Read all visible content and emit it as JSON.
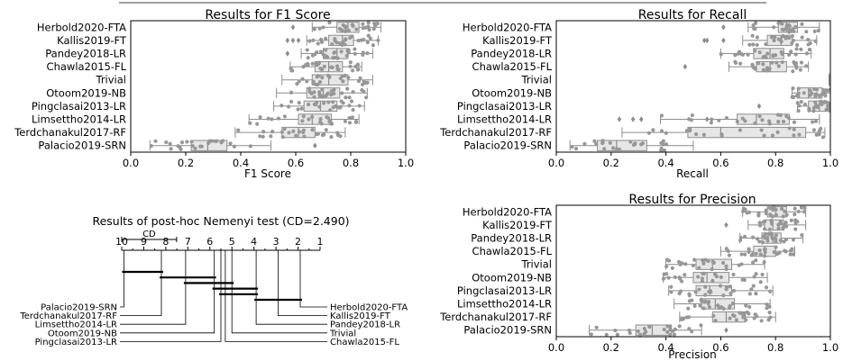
{
  "chart_data": [
    {
      "type": "boxplot",
      "title": "Results for F1 Score",
      "xlabel": "F1 Score",
      "xlim": [
        0.0,
        1.0
      ],
      "xticks": [
        "0.0",
        "0.2",
        "0.4",
        "0.6",
        "0.8",
        "1.0"
      ],
      "categories": [
        "Herbold2020-FTA",
        "Kallis2019-FT",
        "Pandey2018-LR",
        "Chawla2015-FL",
        "Trivial",
        "Otoom2019-NB",
        "Pingclasai2013-LR",
        "Limsettho2014-LR",
        "Terdchanakul2017-RF",
        "Palacio2019-SRN"
      ],
      "boxes": [
        {
          "q1": 0.75,
          "median": 0.79,
          "q3": 0.83,
          "wlo": 0.66,
          "whi": 0.91,
          "outliers": [
            0.59
          ]
        },
        {
          "q1": 0.72,
          "median": 0.77,
          "q3": 0.81,
          "wlo": 0.64,
          "whi": 0.9,
          "outliers": [
            0.57,
            0.59,
            0.61
          ]
        },
        {
          "q1": 0.7,
          "median": 0.75,
          "q3": 0.79,
          "wlo": 0.62,
          "whi": 0.88,
          "outliers": [
            0.57
          ]
        },
        {
          "q1": 0.67,
          "median": 0.72,
          "q3": 0.77,
          "wlo": 0.58,
          "whi": 0.84,
          "outliers": []
        },
        {
          "q1": 0.66,
          "median": 0.72,
          "q3": 0.79,
          "wlo": 0.55,
          "whi": 0.88,
          "outliers": []
        },
        {
          "q1": 0.64,
          "median": 0.7,
          "q3": 0.76,
          "wlo": 0.53,
          "whi": 0.86,
          "outliers": []
        },
        {
          "q1": 0.63,
          "median": 0.69,
          "q3": 0.75,
          "wlo": 0.52,
          "whi": 0.85,
          "outliers": []
        },
        {
          "q1": 0.61,
          "median": 0.66,
          "q3": 0.73,
          "wlo": 0.43,
          "whi": 0.83,
          "outliers": []
        },
        {
          "q1": 0.55,
          "median": 0.61,
          "q3": 0.67,
          "wlo": 0.38,
          "whi": 0.78,
          "outliers": []
        },
        {
          "q1": 0.22,
          "median": 0.28,
          "q3": 0.35,
          "wlo": 0.07,
          "whi": 0.51,
          "outliers": [
            0.67
          ]
        }
      ]
    },
    {
      "type": "boxplot",
      "title": "Results for Recall",
      "xlabel": "Recall",
      "xlim": [
        0.0,
        1.0
      ],
      "xticks": [
        "0.0",
        "0.2",
        "0.4",
        "0.6",
        "0.8",
        "1.0"
      ],
      "categories": [
        "Herbold2020-FTA",
        "Kallis2019-FT",
        "Pandey2018-LR",
        "Chawla2015-FL",
        "Trivial",
        "Otoom2019-NB",
        "Pingclasai2013-LR",
        "Limsettho2014-LR",
        "Terdchanakul2017-RF",
        "Palacio2019-SRN"
      ],
      "boxes": [
        {
          "q1": 0.81,
          "median": 0.84,
          "q3": 0.88,
          "wlo": 0.7,
          "whi": 0.96,
          "outliers": [
            0.61
          ]
        },
        {
          "q1": 0.77,
          "median": 0.82,
          "q3": 0.86,
          "wlo": 0.68,
          "whi": 0.95,
          "outliers": [
            0.54,
            0.55,
            0.61
          ]
        },
        {
          "q1": 0.72,
          "median": 0.78,
          "q3": 0.83,
          "wlo": 0.6,
          "whi": 0.93,
          "outliers": []
        },
        {
          "q1": 0.73,
          "median": 0.78,
          "q3": 0.84,
          "wlo": 0.63,
          "whi": 0.92,
          "outliers": [
            0.47
          ]
        },
        {
          "q1": 1.0,
          "median": 1.0,
          "q3": 1.0,
          "wlo": 1.0,
          "whi": 1.0,
          "outliers": []
        },
        {
          "q1": 0.88,
          "median": 0.92,
          "q3": 0.97,
          "wlo": 0.86,
          "whi": 1.0,
          "outliers": []
        },
        {
          "q1": 0.92,
          "median": 0.96,
          "q3": 0.99,
          "wlo": 0.88,
          "whi": 1.0,
          "outliers": [
            0.74
          ]
        },
        {
          "q1": 0.66,
          "median": 0.73,
          "q3": 0.85,
          "wlo": 0.38,
          "whi": 0.96,
          "outliers": [
            0.23,
            0.28,
            0.31,
            0.55
          ]
        },
        {
          "q1": 0.48,
          "median": 0.6,
          "q3": 0.91,
          "wlo": 0.24,
          "whi": 0.98,
          "outliers": []
        },
        {
          "q1": 0.15,
          "median": 0.22,
          "q3": 0.33,
          "wlo": 0.05,
          "whi": 0.5,
          "outliers": []
        }
      ]
    },
    {
      "type": "boxplot",
      "title": "Results for Precision",
      "xlabel": "Precision",
      "xlim": [
        0.0,
        1.0
      ],
      "xticks": [
        "0.0",
        "0.2",
        "0.4",
        "0.6",
        "0.8",
        "1.0"
      ],
      "categories": [
        "Herbold2020-FTA",
        "Kallis2019-FT",
        "Pandey2018-LR",
        "Chawla2015-FL",
        "Trivial",
        "Otoom2019-NB",
        "Pingclasai2013-LR",
        "Limsettho2014-LR",
        "Terdchanakul2017-RF",
        "Palacio2019-SRN"
      ],
      "boxes": [
        {
          "q1": 0.77,
          "median": 0.8,
          "q3": 0.84,
          "wlo": 0.68,
          "whi": 0.91,
          "outliers": []
        },
        {
          "q1": 0.76,
          "median": 0.79,
          "q3": 0.83,
          "wlo": 0.7,
          "whi": 0.91,
          "outliers": [
            0.62
          ]
        },
        {
          "q1": 0.75,
          "median": 0.79,
          "q3": 0.82,
          "wlo": 0.67,
          "whi": 0.9,
          "outliers": []
        },
        {
          "q1": 0.72,
          "median": 0.76,
          "q3": 0.8,
          "wlo": 0.6,
          "whi": 0.87,
          "outliers": []
        },
        {
          "q1": 0.51,
          "median": 0.57,
          "q3": 0.64,
          "wlo": 0.4,
          "whi": 0.76,
          "outliers": []
        },
        {
          "q1": 0.5,
          "median": 0.55,
          "q3": 0.63,
          "wlo": 0.39,
          "whi": 0.77,
          "outliers": []
        },
        {
          "q1": 0.51,
          "median": 0.56,
          "q3": 0.64,
          "wlo": 0.41,
          "whi": 0.79,
          "outliers": []
        },
        {
          "q1": 0.53,
          "median": 0.58,
          "q3": 0.65,
          "wlo": 0.43,
          "whi": 0.78,
          "outliers": []
        },
        {
          "q1": 0.57,
          "median": 0.62,
          "q3": 0.69,
          "wlo": 0.45,
          "whi": 0.8,
          "outliers": []
        },
        {
          "q1": 0.29,
          "median": 0.35,
          "q3": 0.42,
          "wlo": 0.12,
          "whi": 0.53,
          "outliers": [
            0.62
          ]
        }
      ]
    },
    {
      "type": "cd-diagram",
      "title": "Results of post-hoc Nemenyi test (CD=2.490)",
      "cd_label": "CD",
      "cd": 2.49,
      "rank_range": [
        1,
        10
      ],
      "ticks": [
        "10",
        "9",
        "8",
        "7",
        "6",
        "5",
        "4",
        "3",
        "2",
        "1"
      ],
      "left_methods": [
        {
          "name": "Palacio2019-SRN",
          "rank": 9.9
        },
        {
          "name": "Terdchanakul2017-RF",
          "rank": 8.2
        },
        {
          "name": "Limsettho2014-LR",
          "rank": 7.1
        },
        {
          "name": "Otoom2019-NB",
          "rank": 5.8
        },
        {
          "name": "Pingclasai2013-LR",
          "rank": 5.5
        }
      ],
      "right_methods": [
        {
          "name": "Herbold2020-FTA",
          "rank": 1.9
        },
        {
          "name": "Kallis2019-FT",
          "rank": 2.9
        },
        {
          "name": "Pandey2018-LR",
          "rank": 3.9
        },
        {
          "name": "Trivial",
          "rank": 5.0
        },
        {
          "name": "Chawla2015-FL",
          "rank": 5.3
        }
      ],
      "cliques": [
        [
          9.9,
          8.2
        ],
        [
          8.2,
          5.8
        ],
        [
          7.1,
          5.0
        ],
        [
          5.8,
          3.9
        ],
        [
          5.5,
          3.9
        ],
        [
          3.9,
          1.9
        ]
      ]
    }
  ]
}
